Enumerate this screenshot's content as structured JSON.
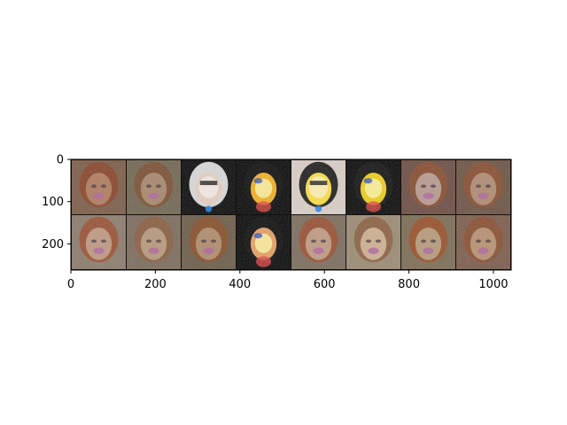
{
  "chart_data": {
    "type": "heatmap",
    "title": "",
    "xlabel": "",
    "ylabel": "",
    "xlim": [
      0,
      1042
    ],
    "ylim": [
      262,
      0
    ],
    "grid": false,
    "xticks": [
      {
        "value": 0,
        "label": "0"
      },
      {
        "value": 200,
        "label": "200"
      },
      {
        "value": 400,
        "label": "400"
      },
      {
        "value": 600,
        "label": "600"
      },
      {
        "value": 800,
        "label": "800"
      },
      {
        "value": 1000,
        "label": "1000"
      }
    ],
    "yticks": [
      {
        "value": 0,
        "label": "0"
      },
      {
        "value": 100,
        "label": "100"
      },
      {
        "value": 200,
        "label": "200"
      }
    ],
    "image_grid": {
      "rows": 2,
      "cols": 8,
      "tile_size": 128,
      "padding": 2,
      "tiles": [
        {
          "style": "face-dim",
          "bg": "#7a5a45",
          "face": "#b07a5c",
          "hair": "#8a3f22"
        },
        {
          "style": "face-dim",
          "bg": "#6f6450",
          "face": "#a8866a",
          "hair": "#7a4a2a"
        },
        {
          "style": "face-bright",
          "bg": "#050505",
          "face": "#e8d0c0",
          "hair": "#f2f2f2"
        },
        {
          "style": "face-hot",
          "bg": "#030303",
          "face": "#f5b020",
          "hair": "#0a0a0a"
        },
        {
          "style": "face-bright",
          "bg": "#dcd0c8",
          "face": "#ffe040",
          "hair": "#050505"
        },
        {
          "style": "face-hot",
          "bg": "#040404",
          "face": "#f0d018",
          "hair": "#101010"
        },
        {
          "style": "face-dim",
          "bg": "#6a4a40",
          "face": "#b89a90",
          "hair": "#8a4a2a"
        },
        {
          "style": "face-dim",
          "bg": "#6a5040",
          "face": "#b08a70",
          "hair": "#8a4a2a"
        },
        {
          "style": "face-dim",
          "bg": "#8a7a6a",
          "face": "#c09880",
          "hair": "#9a4a2a"
        },
        {
          "style": "face-dim",
          "bg": "#7a6a5a",
          "face": "#b8987a",
          "hair": "#8a5a3a"
        },
        {
          "style": "face-dim",
          "bg": "#6a5a45",
          "face": "#b08a68",
          "hair": "#8a4a22"
        },
        {
          "style": "face-hot",
          "bg": "#030303",
          "face": "#e8a060",
          "hair": "#0a0a0a"
        },
        {
          "style": "face-dim",
          "bg": "#7a6a5a",
          "face": "#c09a80",
          "hair": "#9a4a2a"
        },
        {
          "style": "face-dim",
          "bg": "#9a8a70",
          "face": "#d0b090",
          "hair": "#8a5a3a"
        },
        {
          "style": "face-dim",
          "bg": "#7a6a50",
          "face": "#b89a78",
          "hair": "#9a4a22"
        },
        {
          "style": "face-dim",
          "bg": "#7a5a48",
          "face": "#b8906e",
          "hair": "#8a4a2a"
        }
      ]
    }
  }
}
